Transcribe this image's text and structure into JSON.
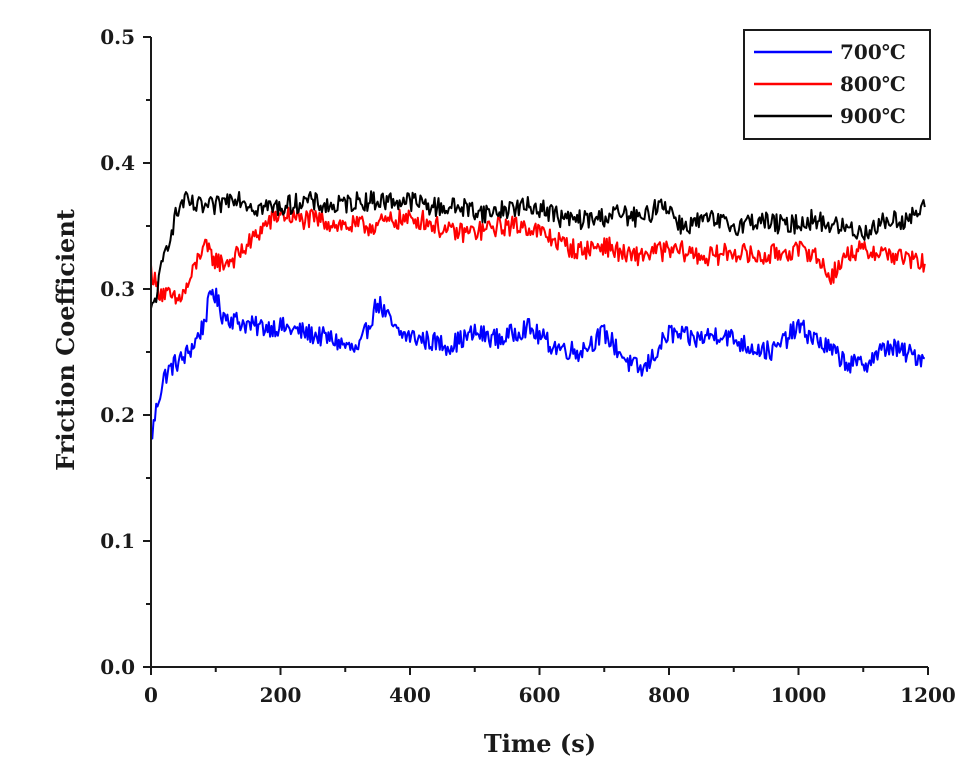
{
  "chart_data": {
    "type": "line",
    "title": "",
    "xlabel": "Time (s)",
    "ylabel": "Friction Coefficient",
    "xlim": [
      0,
      1200
    ],
    "ylim": [
      0.0,
      0.5
    ],
    "x_ticks": [
      "0",
      "200",
      "400",
      "600",
      "800",
      "1000",
      "1200"
    ],
    "y_ticks": [
      "0.0",
      "0.1",
      "0.2",
      "0.3",
      "0.4",
      "0.5"
    ],
    "grid": false,
    "legend_position": "top-right",
    "series": [
      {
        "name": "700℃",
        "color": "#0000ff",
        "x": [
          0,
          10,
          20,
          35,
          50,
          65,
          80,
          95,
          110,
          130,
          160,
          200,
          240,
          280,
          320,
          350,
          380,
          420,
          460,
          500,
          540,
          580,
          620,
          660,
          700,
          740,
          760,
          800,
          840,
          880,
          920,
          960,
          1000,
          1040,
          1080,
          1100,
          1140,
          1160,
          1195
        ],
        "y": [
          0.18,
          0.21,
          0.23,
          0.24,
          0.245,
          0.255,
          0.27,
          0.3,
          0.28,
          0.275,
          0.27,
          0.27,
          0.265,
          0.26,
          0.25,
          0.29,
          0.265,
          0.26,
          0.255,
          0.265,
          0.26,
          0.27,
          0.255,
          0.25,
          0.265,
          0.24,
          0.235,
          0.265,
          0.26,
          0.265,
          0.255,
          0.25,
          0.27,
          0.255,
          0.24,
          0.24,
          0.255,
          0.25,
          0.245
        ]
      },
      {
        "name": "800℃",
        "color": "#ff0000",
        "x": [
          0,
          10,
          25,
          40,
          55,
          70,
          80,
          95,
          110,
          130,
          150,
          175,
          200,
          230,
          260,
          300,
          340,
          380,
          420,
          460,
          500,
          540,
          580,
          620,
          660,
          700,
          740,
          780,
          820,
          860,
          900,
          940,
          980,
          1020,
          1050,
          1080,
          1120,
          1160,
          1195
        ],
        "y": [
          0.315,
          0.3,
          0.295,
          0.29,
          0.3,
          0.32,
          0.335,
          0.325,
          0.32,
          0.325,
          0.335,
          0.35,
          0.36,
          0.355,
          0.355,
          0.35,
          0.35,
          0.355,
          0.355,
          0.345,
          0.345,
          0.35,
          0.35,
          0.34,
          0.33,
          0.335,
          0.325,
          0.33,
          0.33,
          0.325,
          0.33,
          0.325,
          0.33,
          0.33,
          0.31,
          0.33,
          0.33,
          0.325,
          0.32
        ]
      },
      {
        "name": "900℃",
        "color": "#000000",
        "x": [
          0,
          10,
          20,
          30,
          40,
          50,
          70,
          100,
          130,
          160,
          200,
          240,
          280,
          320,
          360,
          400,
          440,
          480,
          520,
          560,
          600,
          640,
          680,
          720,
          760,
          790,
          820,
          860,
          900,
          940,
          980,
          1020,
          1060,
          1100,
          1140,
          1170,
          1195
        ],
        "y": [
          0.28,
          0.3,
          0.325,
          0.345,
          0.36,
          0.37,
          0.365,
          0.365,
          0.375,
          0.365,
          0.365,
          0.37,
          0.365,
          0.37,
          0.37,
          0.37,
          0.365,
          0.365,
          0.36,
          0.365,
          0.365,
          0.355,
          0.355,
          0.36,
          0.355,
          0.37,
          0.35,
          0.355,
          0.35,
          0.355,
          0.35,
          0.355,
          0.35,
          0.345,
          0.355,
          0.355,
          0.365
        ]
      }
    ]
  }
}
